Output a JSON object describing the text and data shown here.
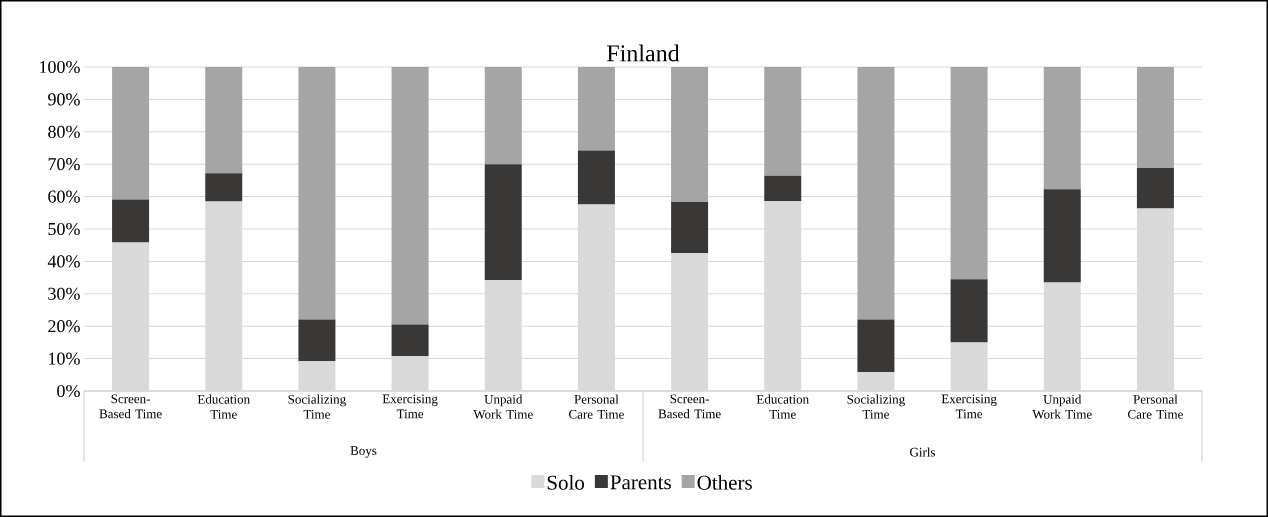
{
  "chart_data": {
    "type": "bar",
    "title": "Finland",
    "stacked": true,
    "categories": [
      "Screen-Based Time",
      "Education Time",
      "Socializing Time",
      "Exercising Time",
      "Unpaid Work Time",
      "Personal Care Time",
      "Screen-Based Time",
      "Education Time",
      "Socializing Time",
      "Exercising Time",
      "Unpaid Work Time",
      "Personal Care Time"
    ],
    "series": [
      {
        "name": "Solo",
        "color": "#d9d9d9",
        "values": [
          45.8,
          58.5,
          9.2,
          10.7,
          34.2,
          57.6,
          42.6,
          58.6,
          5.8,
          15.0,
          33.5,
          56.3
        ]
      },
      {
        "name": "Parents",
        "color": "#3a3836",
        "values": [
          13.3,
          8.7,
          12.9,
          9.8,
          35.8,
          16.6,
          15.7,
          7.8,
          16.3,
          19.5,
          28.8,
          12.5
        ]
      },
      {
        "name": "Others",
        "color": "#a5a5a5",
        "values": [
          40.9,
          32.8,
          77.9,
          79.5,
          30.0,
          25.8,
          41.7,
          33.6,
          77.9,
          65.5,
          37.7,
          31.2
        ]
      }
    ],
    "ylim": [
      0,
      100
    ],
    "yticks": [
      {
        "value": 0,
        "label": "0%"
      },
      {
        "value": 10,
        "label": "10%"
      },
      {
        "value": 20,
        "label": "20%"
      },
      {
        "value": 30,
        "label": "30%"
      },
      {
        "value": 40,
        "label": "40%"
      },
      {
        "value": 50,
        "label": "50%"
      },
      {
        "value": 60,
        "label": "60%"
      },
      {
        "value": 70,
        "label": "70%"
      },
      {
        "value": 80,
        "label": "80%"
      },
      {
        "value": 90,
        "label": "90%"
      },
      {
        "value": 100,
        "label": "100%"
      }
    ],
    "grid": "y",
    "legend": "bottom",
    "annotations": [
      "Boys",
      "Girls"
    ]
  }
}
